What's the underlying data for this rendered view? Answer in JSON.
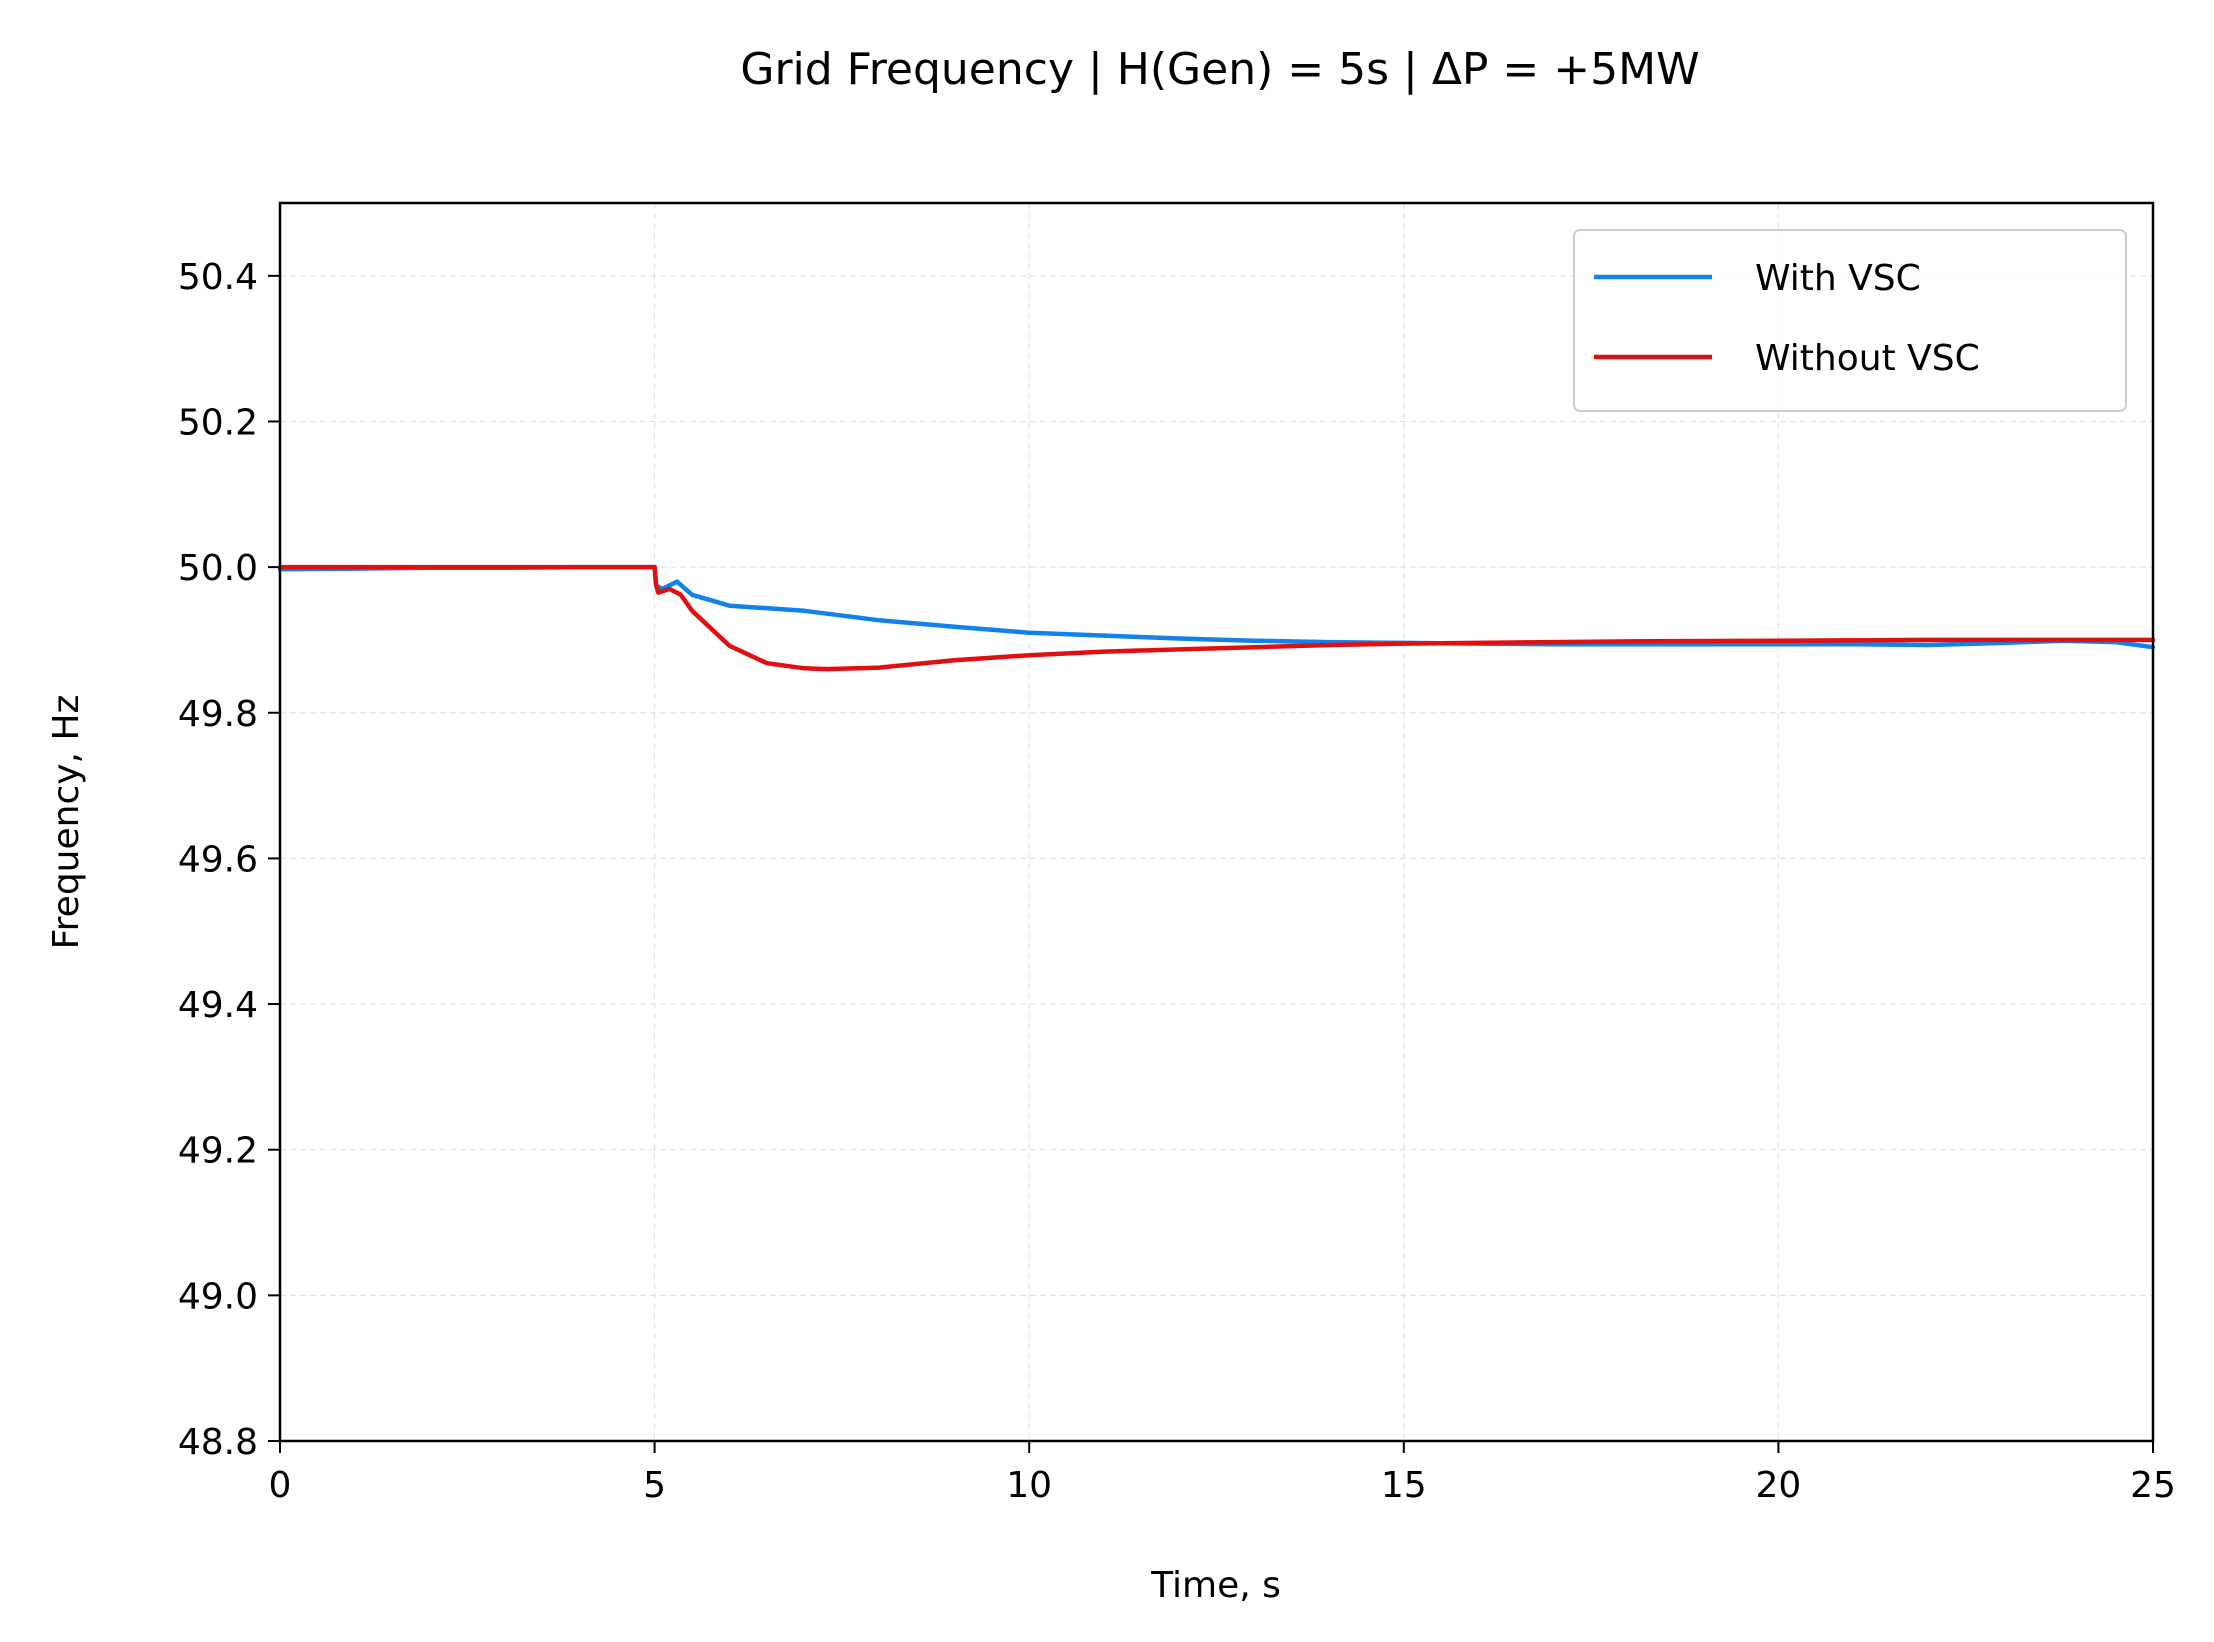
{
  "chart_data": {
    "type": "line",
    "title": "Grid Frequency  |  H(Gen) = 5s  |  ΔP = +5MW",
    "xlabel": "Time, s",
    "ylabel": "Frequency, Hz",
    "xlim": [
      0,
      25
    ],
    "ylim": [
      48.8,
      50.5
    ],
    "xticks": [
      0,
      5,
      10,
      15,
      20,
      25
    ],
    "yticks": [
      48.8,
      49.0,
      49.2,
      49.4,
      49.6,
      49.8,
      50.0,
      50.2,
      50.4
    ],
    "xtick_labels": [
      "0",
      "5",
      "10",
      "15",
      "20",
      "25"
    ],
    "ytick_labels": [
      "48.8",
      "49.0",
      "49.2",
      "49.4",
      "49.6",
      "49.8",
      "50.0",
      "50.2",
      "50.4"
    ],
    "grid": true,
    "legend_position": "top-right",
    "series": [
      {
        "name": "With VSC",
        "color": "#1082ea",
        "x": [
          0,
          1,
          2,
          3,
          4,
          5,
          5.02,
          5.1,
          5.3,
          5.5,
          6,
          7,
          8,
          9,
          10,
          11,
          12,
          13,
          14,
          15,
          16,
          17,
          18,
          19,
          20,
          21,
          22,
          23,
          23.8,
          24.5,
          25
        ],
        "y": [
          49.997,
          49.998,
          49.999,
          49.999,
          50.0,
          50.0,
          49.975,
          49.97,
          49.98,
          49.962,
          49.947,
          49.94,
          49.927,
          49.918,
          49.91,
          49.906,
          49.902,
          49.899,
          49.897,
          49.896,
          49.895,
          49.894,
          49.894,
          49.894,
          49.894,
          49.894,
          49.893,
          49.896,
          49.899,
          49.897,
          49.89
        ]
      },
      {
        "name": "Without VSC",
        "color": "#e01010",
        "x": [
          0,
          1,
          2,
          3,
          4,
          5,
          5.02,
          5.05,
          5.2,
          5.35,
          5.5,
          6,
          6.5,
          7,
          7.3,
          8,
          9,
          10,
          11,
          12,
          13,
          14,
          15,
          16,
          17,
          18,
          20,
          22,
          25
        ],
        "y": [
          50.0,
          50.0,
          50.0,
          50.0,
          50.0,
          50.0,
          49.975,
          49.965,
          49.97,
          49.962,
          49.94,
          49.892,
          49.868,
          49.861,
          49.86,
          49.862,
          49.872,
          49.879,
          49.884,
          49.887,
          49.89,
          49.893,
          49.895,
          49.896,
          49.897,
          49.898,
          49.899,
          49.9,
          49.9
        ]
      }
    ]
  }
}
